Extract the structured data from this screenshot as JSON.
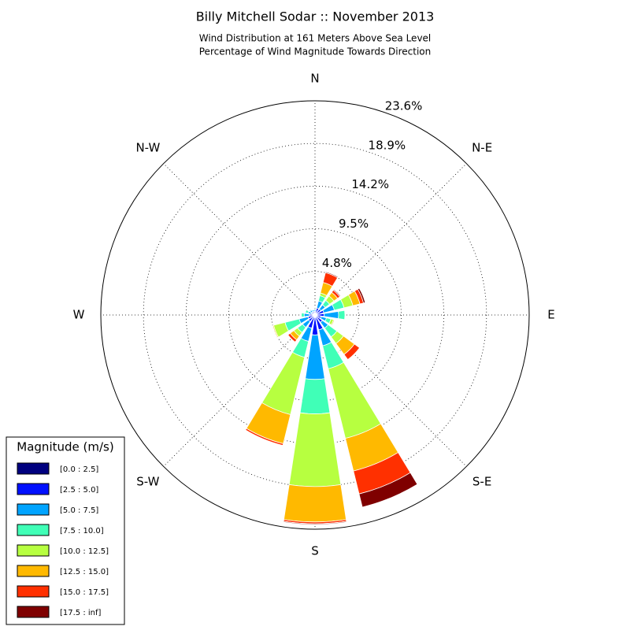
{
  "chart_data": {
    "type": "windrose",
    "title": "Billy Mitchell Sodar :: November 2013",
    "subtitle": [
      "Wind Distribution at 161 Meters Above Sea Level",
      "Percentage of Wind Magnitude Towards Direction"
    ],
    "direction_labels": [
      "N",
      "N-E",
      "E",
      "S-E",
      "S",
      "S-W",
      "W",
      "N-W"
    ],
    "rlim": [
      0,
      23.6
    ],
    "rticks": [
      {
        "value": 4.8,
        "label": "4.8%"
      },
      {
        "value": 9.5,
        "label": "9.5%"
      },
      {
        "value": 14.2,
        "label": "14.2%"
      },
      {
        "value": 18.9,
        "label": "18.9%"
      },
      {
        "value": 23.6,
        "label": "23.6%"
      }
    ],
    "grid": true,
    "legend_title": "Magnitude (m/s)",
    "legend_position": "lower left",
    "series": [
      {
        "name": "[0.0 : 2.5]",
        "color": "#00007f",
        "values": [
          0.1,
          0.2,
          0.2,
          0.2,
          0.2,
          0.1,
          0.2,
          0.2,
          0.3,
          0.2,
          0.2,
          0.2,
          0.1,
          0.1,
          0.1,
          0.1
        ]
      },
      {
        "name": "[2.5 : 5.0]",
        "color": "#0010ff",
        "values": [
          0.3,
          0.6,
          0.6,
          0.8,
          0.8,
          0.6,
          0.8,
          1.5,
          1.9,
          1.3,
          0.7,
          0.6,
          0.5,
          0.3,
          0.3,
          0.3
        ]
      },
      {
        "name": "[5.0 : 7.5]",
        "color": "#00a4ff",
        "values": [
          0.2,
          0.8,
          0.6,
          1.2,
          1.6,
          0.6,
          0.8,
          1.8,
          4.9,
          1.5,
          0.8,
          1.0,
          0.6,
          0.4,
          0.3,
          0.2
        ]
      },
      {
        "name": "[7.5 : 10.0]",
        "color": "#40ffb7",
        "values": [
          0.1,
          0.6,
          0.6,
          1.1,
          0.7,
          0.5,
          1.2,
          2.6,
          3.8,
          1.8,
          0.7,
          1.6,
          0.3,
          0.3,
          0.1,
          0
        ]
      },
      {
        "name": "[10.0 : 12.5]",
        "color": "#b7ff40",
        "values": [
          0,
          0.3,
          0.6,
          1.0,
          0,
          0.3,
          0.9,
          7.9,
          8.0,
          6.5,
          0.5,
          1.3,
          0,
          0,
          0,
          0
        ]
      },
      {
        "name": "[12.5 : 15.0]",
        "color": "#ffb900",
        "values": [
          0,
          1.2,
          0.5,
          0.8,
          0,
          0.1,
          1.5,
          3.7,
          3.9,
          3.3,
          0.5,
          0.1,
          0,
          0,
          0,
          0
        ]
      },
      {
        "name": "[15.0 : 17.5]",
        "color": "#ff3000",
        "values": [
          0,
          1.1,
          0.3,
          0.4,
          0,
          0,
          0.7,
          2.6,
          0.2,
          0.2,
          0.3,
          0,
          0,
          0,
          0,
          0
        ]
      },
      {
        "name": "[17.5 : inf]",
        "color": "#7f0000",
        "values": [
          0,
          0.1,
          0.1,
          0.2,
          0,
          0,
          0,
          1.5,
          0.1,
          0,
          0,
          0,
          0,
          0,
          0,
          0
        ]
      }
    ]
  }
}
